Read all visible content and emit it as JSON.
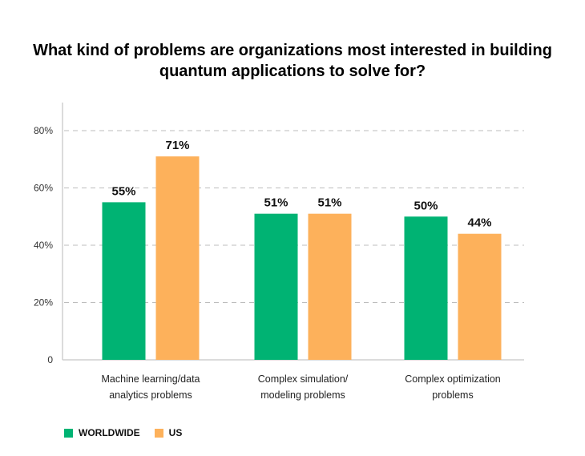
{
  "chart_data": {
    "type": "bar",
    "title": "What kind of problems are organizations most interested in building quantum applications to solve for?",
    "categories": [
      [
        "Machine learning/data",
        "analytics problems"
      ],
      [
        "Complex simulation/",
        "modeling problems"
      ],
      [
        "Complex optimization",
        "problems"
      ]
    ],
    "series": [
      {
        "name": "WORLDWIDE",
        "color": "#00b373",
        "values": [
          55,
          51,
          50
        ],
        "labels": [
          "55%",
          "51%",
          "50%"
        ]
      },
      {
        "name": "US",
        "color": "#fdb15b",
        "values": [
          71,
          51,
          44
        ],
        "labels": [
          "71%",
          "51%",
          "44%"
        ]
      }
    ],
    "ylim": [
      0,
      80
    ],
    "yticks": [
      0,
      20,
      40,
      60,
      80
    ],
    "ytick_labels": [
      "0",
      "20%",
      "40%",
      "60%",
      "80%"
    ],
    "grid": "dashed",
    "legend_position": "bottom-left"
  }
}
